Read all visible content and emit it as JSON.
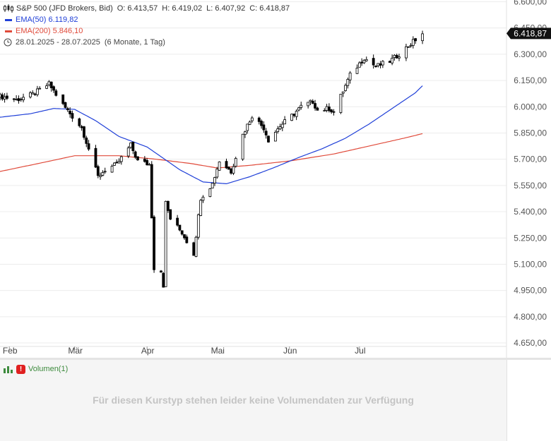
{
  "header": {
    "title": "S&P 500 (JFD Brokers, Bid)",
    "o_label": "O:",
    "o_value": "6.413,57",
    "h_label": "H:",
    "h_value": "6.419,02",
    "l_label": "L:",
    "l_value": "6.407,92",
    "c_label": "C:",
    "c_value": "6.418,87",
    "ema50_label": "EMA(50)",
    "ema50_value": "6.119,82",
    "ema200_label": "EMA(200)",
    "ema200_value": "5.846,10",
    "date_range": "28.01.2025 - 28.07.2025",
    "period": "(6 Monate, 1 Tag)"
  },
  "colors": {
    "ema50": "#2040d8",
    "ema200": "#e04a3a",
    "candle": "#000000",
    "grid": "#ececec",
    "badge": "#111111"
  },
  "icons": {
    "chart_type": "candlestick-icon",
    "time": "clock-icon",
    "volume": "bar-chart-icon",
    "warning": "warning-icon"
  },
  "volume": {
    "label": "Volumen(1)",
    "warning_mark": "!",
    "message": "Für diesen Kurstyp stehen leider keine Volumendaten zur Verfügung"
  },
  "chart_data": {
    "type": "candlestick",
    "y_ticks": [
      "4.650,00",
      "4.800,00",
      "4.950,00",
      "5.100,00",
      "5.250,00",
      "5.400,00",
      "5.550,00",
      "5.700,00",
      "5.850,00",
      "6.000,00",
      "6.150,00",
      "6.300,00",
      "6.450,00",
      "6.600,00"
    ],
    "y_tick_values": [
      4650,
      4800,
      4950,
      5100,
      5250,
      5400,
      5550,
      5700,
      5850,
      6000,
      6150,
      6300,
      6450,
      6600
    ],
    "x_labels": [
      "Feb",
      "Mär",
      "Apr",
      "Mai",
      "Jun",
      "Jul"
    ],
    "x_label_dates": [
      "2025-02-01",
      "2025-03-01",
      "2025-04-01",
      "2025-05-01",
      "2025-06-01",
      "2025-07-01"
    ],
    "x_range": [
      "2025-01-28",
      "2025-09-02"
    ],
    "ylim": [
      4630,
      6610
    ],
    "last_price": "6.418,87",
    "last_price_value": 6418.87,
    "close_path": [
      [
        "2025-01-28",
        6060
      ],
      [
        "2025-02-04",
        6040
      ],
      [
        "2025-02-11",
        6070
      ],
      [
        "2025-02-18",
        6130
      ],
      [
        "2025-02-24",
        6010
      ],
      [
        "2025-03-04",
        5880
      ],
      [
        "2025-03-11",
        5600
      ],
      [
        "2025-03-14",
        5640
      ],
      [
        "2025-03-19",
        5670
      ],
      [
        "2025-03-25",
        5780
      ],
      [
        "2025-03-28",
        5690
      ],
      [
        "2025-04-02",
        5670
      ],
      [
        "2025-04-04",
        5080
      ],
      [
        "2025-04-07",
        5060
      ],
      [
        "2025-04-08",
        4980
      ],
      [
        "2025-04-09",
        5450
      ],
      [
        "2025-04-11",
        5360
      ],
      [
        "2025-04-16",
        5280
      ],
      [
        "2025-04-21",
        5160
      ],
      [
        "2025-04-24",
        5480
      ],
      [
        "2025-04-29",
        5560
      ],
      [
        "2025-05-02",
        5690
      ],
      [
        "2025-05-07",
        5630
      ],
      [
        "2025-05-12",
        5840
      ],
      [
        "2025-05-16",
        5950
      ],
      [
        "2025-05-21",
        5880
      ],
      [
        "2025-05-23",
        5810
      ],
      [
        "2025-05-28",
        5890
      ],
      [
        "2025-06-03",
        5960
      ],
      [
        "2025-06-06",
        6000
      ],
      [
        "2025-06-11",
        6030
      ],
      [
        "2025-06-13",
        5980
      ],
      [
        "2025-06-18",
        5990
      ],
      [
        "2025-06-20",
        5970
      ],
      [
        "2025-06-24",
        6090
      ],
      [
        "2025-06-27",
        6180
      ],
      [
        "2025-07-03",
        6280
      ],
      [
        "2025-07-08",
        6230
      ],
      [
        "2025-07-14",
        6260
      ],
      [
        "2025-07-18",
        6300
      ],
      [
        "2025-07-23",
        6360
      ],
      [
        "2025-07-28",
        6418.87
      ]
    ],
    "ema50": [
      [
        "2025-01-28",
        5940
      ],
      [
        "2025-02-10",
        5960
      ],
      [
        "2025-02-20",
        5990
      ],
      [
        "2025-03-01",
        5985
      ],
      [
        "2025-03-10",
        5920
      ],
      [
        "2025-03-20",
        5830
      ],
      [
        "2025-04-01",
        5770
      ],
      [
        "2025-04-15",
        5640
      ],
      [
        "2025-04-25",
        5570
      ],
      [
        "2025-05-05",
        5560
      ],
      [
        "2025-05-15",
        5600
      ],
      [
        "2025-05-25",
        5650
      ],
      [
        "2025-06-05",
        5710
      ],
      [
        "2025-06-15",
        5760
      ],
      [
        "2025-06-25",
        5820
      ],
      [
        "2025-07-05",
        5900
      ],
      [
        "2025-07-15",
        5990
      ],
      [
        "2025-07-25",
        6080
      ],
      [
        "2025-07-28",
        6119.82
      ]
    ],
    "ema200": [
      [
        "2025-01-28",
        5630
      ],
      [
        "2025-02-15",
        5680
      ],
      [
        "2025-03-01",
        5720
      ],
      [
        "2025-03-20",
        5720
      ],
      [
        "2025-04-05",
        5700
      ],
      [
        "2025-04-20",
        5675
      ],
      [
        "2025-05-01",
        5650
      ],
      [
        "2025-05-15",
        5665
      ],
      [
        "2025-06-01",
        5690
      ],
      [
        "2025-06-20",
        5730
      ],
      [
        "2025-07-05",
        5775
      ],
      [
        "2025-07-20",
        5820
      ],
      [
        "2025-07-28",
        5846.1
      ]
    ],
    "grid": true,
    "legend_position": "top-left"
  }
}
